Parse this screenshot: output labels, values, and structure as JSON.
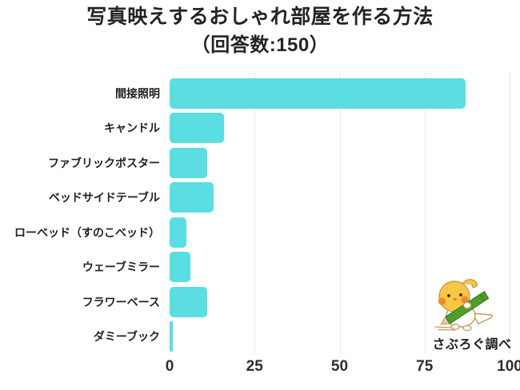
{
  "title": {
    "line1": "写真映えするおしゃれ部屋を作る方法",
    "line2": "（回答数:150）"
  },
  "chart_data": {
    "type": "bar",
    "orientation": "horizontal",
    "title": "写真映えするおしゃれ部屋を作る方法",
    "subtitle": "（回答数:150）",
    "total_responses": 150,
    "categories": [
      "間接照明",
      "キャンドル",
      "ファブリックポスター",
      "ベッドサイドテーブル",
      "ローベッド（すのこベッド）",
      "ウェーブミラー",
      "フラワーベース",
      "ダミーブック"
    ],
    "values": [
      87,
      16,
      11,
      13,
      5,
      6,
      11,
      1
    ],
    "xlim": [
      0,
      100
    ],
    "x_ticks": [
      "0",
      "25",
      "50",
      "75",
      "100"
    ],
    "grid": "vertical gridlines at 25, 50, 75, 100",
    "legend": "none",
    "colors": {
      "bar": "#5adee2",
      "gridline": "#e8e8e8",
      "text": "#222222",
      "background": "#ffffff"
    }
  },
  "watermark": {
    "caption": "さぶろぐ調べ",
    "mascot": "cockatiel-chick-holding-green-pencil",
    "mascot_colors": {
      "head": "#f8c640",
      "cheek": "#ee8833",
      "body": "#ffffff",
      "outline": "#c49a5f",
      "pencil": "#4e9e2b",
      "pencil_dark": "#3c7f1f"
    }
  }
}
